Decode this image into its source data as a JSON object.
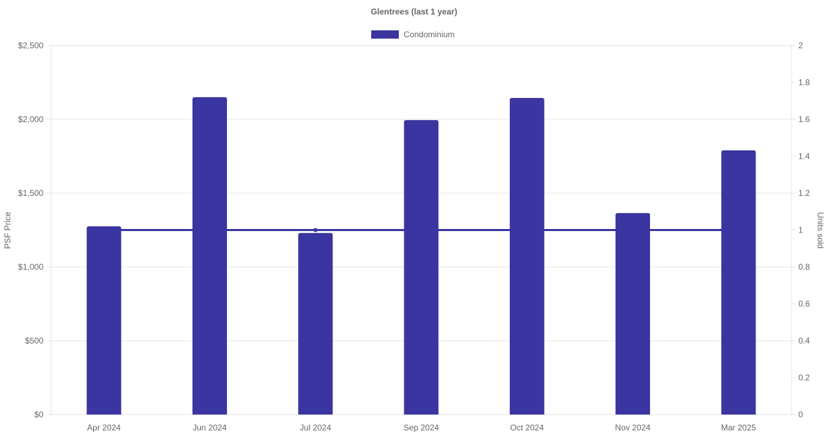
{
  "chart_data": {
    "type": "bar",
    "title": "Glentrees (last 1 year)",
    "legend": {
      "position": "top",
      "entries": [
        "Condominium"
      ]
    },
    "categories": [
      "Apr 2024",
      "Jun 2024",
      "Jul 2024",
      "Sep 2024",
      "Oct 2024",
      "Nov 2024",
      "Mar 2025"
    ],
    "series": [
      {
        "name": "Condominium",
        "type": "bar",
        "axis": "left",
        "values": [
          1275,
          2150,
          1230,
          1995,
          2145,
          1365,
          1790
        ]
      },
      {
        "type": "line",
        "axis": "right",
        "values": [
          1,
          1,
          1,
          1,
          1,
          1,
          1
        ]
      }
    ],
    "y_left": {
      "label": "PSF Price",
      "min": 0,
      "max": 2500,
      "ticks": [
        0,
        500,
        1000,
        1500,
        2000,
        2500
      ],
      "tick_labels": [
        "$0",
        "$500",
        "$1,000",
        "$1,500",
        "$2,000",
        "$2,500"
      ]
    },
    "y_right": {
      "label": "Units sold",
      "min": 0,
      "max": 2,
      "ticks": [
        0,
        0.2,
        0.4,
        0.6,
        0.8,
        1,
        1.2,
        1.4,
        1.6,
        1.8,
        2
      ],
      "tick_labels": [
        "0",
        "0.2",
        "0.4",
        "0.6",
        "0.8",
        "1",
        "1.2",
        "1.4",
        "1.6",
        "1.8",
        "2"
      ]
    },
    "grid": true,
    "colors": {
      "bar": "#3a35a0",
      "line": "#3a35a0",
      "grid": "#e6e6e6",
      "text": "#666666"
    }
  }
}
